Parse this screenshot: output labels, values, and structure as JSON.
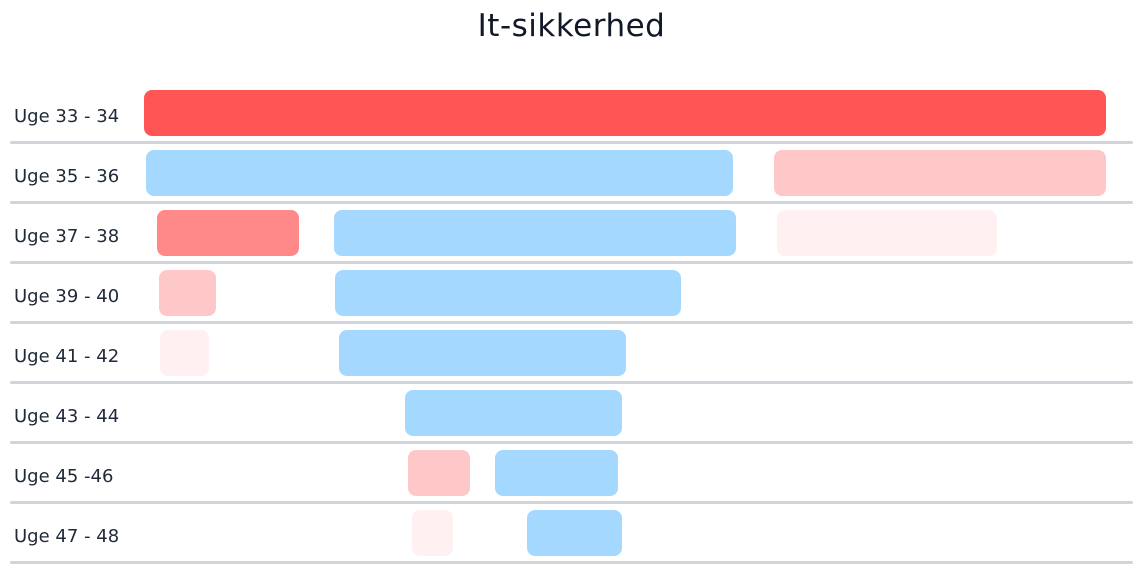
{
  "title": "It-sikkerhed",
  "rows": [
    {
      "label": "Uge 33 - 34"
    },
    {
      "label": "Uge 35 - 36"
    },
    {
      "label": "Uge 37 - 38"
    },
    {
      "label": "Uge 39 - 40"
    },
    {
      "label": "Uge 41 - 42"
    },
    {
      "label": "Uge 43 - 44"
    },
    {
      "label": "Uge 45 -46"
    },
    {
      "label": "Uge 47 - 48"
    }
  ],
  "colors": {
    "red_strong": "#ff5555",
    "red_mid": "#ff8888",
    "red_light": "#ffc8c8",
    "red_faint": "#fff1f1",
    "blue": "#a5d8ff",
    "divider": "#d1d5db"
  }
}
